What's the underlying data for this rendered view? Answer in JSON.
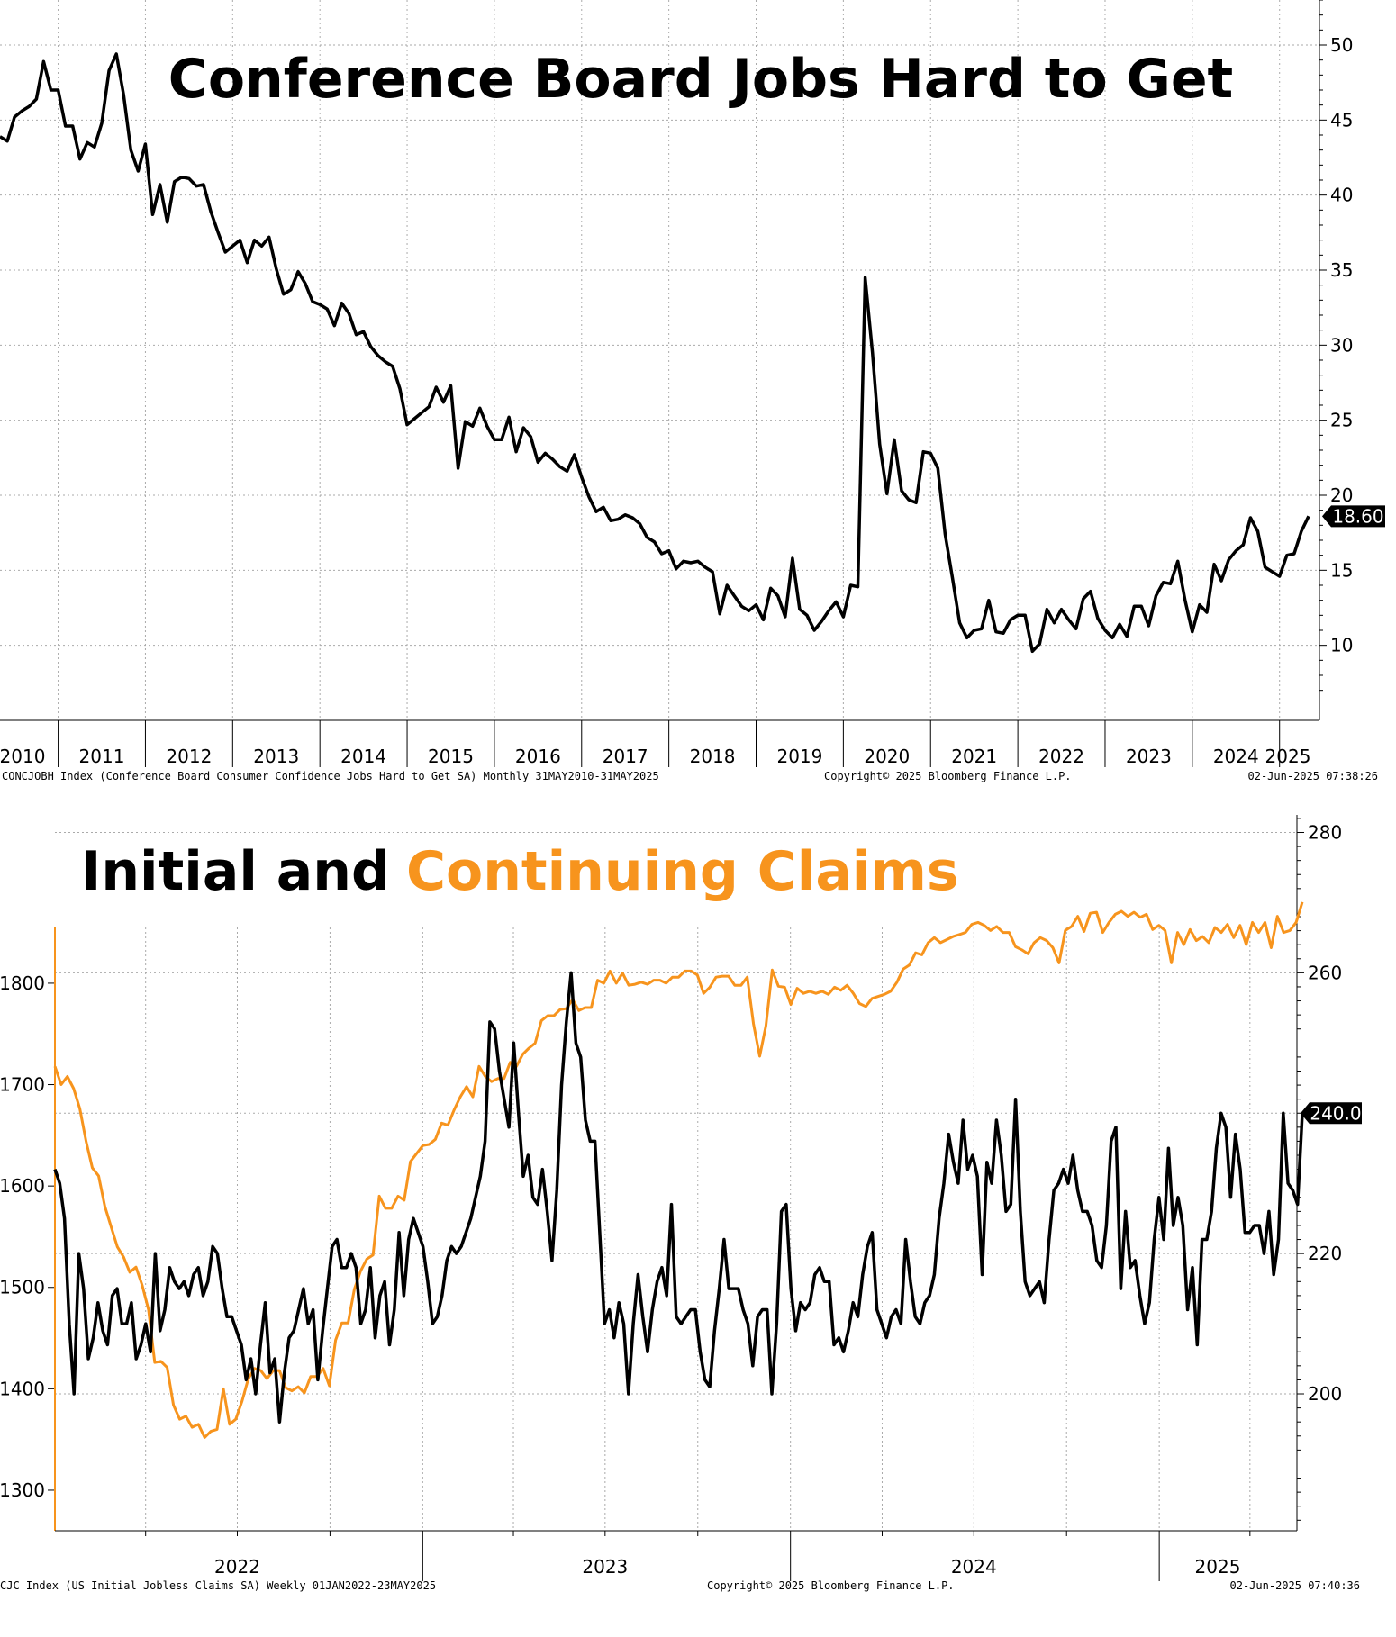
{
  "chart_data": [
    {
      "type": "line",
      "title": "Conference Board Jobs Hard to Get",
      "y_axis_position": "right",
      "ylim": [
        5,
        53
      ],
      "y_ticks": [
        10,
        15,
        20,
        25,
        30,
        35,
        40,
        45,
        50
      ],
      "x_ticks": [
        "2010",
        "2011",
        "2012",
        "2013",
        "2014",
        "2015",
        "2016",
        "2017",
        "2018",
        "2019",
        "2020",
        "2021",
        "2022",
        "2023",
        "2024",
        "2025"
      ],
      "grid": true,
      "last_value_label": "18.60",
      "line_color": "#000000",
      "footer_left": "CONCJOBH Index (Conference Board Consumer Confidence Jobs Hard to Get SA)  Monthly 31MAY2010-31MAY2025",
      "footer_center": "Copyright© 2025 Bloomberg Finance L.P.",
      "footer_right": "02-Jun-2025 07:38:26",
      "series": [
        {
          "start": "2010-05",
          "frequency": "monthly",
          "values": [
            43.9,
            43.6,
            45.2,
            45.6,
            45.9,
            46.4,
            48.9,
            47.0,
            47.0,
            44.6,
            44.6,
            42.4,
            43.5,
            43.2,
            44.8,
            48.3,
            49.4,
            46.7,
            43.0,
            41.6,
            43.4,
            38.7,
            40.7,
            38.2,
            40.9,
            41.2,
            41.1,
            40.6,
            40.7,
            38.9,
            37.5,
            36.2,
            36.6,
            37.0,
            35.5,
            37.0,
            36.6,
            37.2,
            35.1,
            33.4,
            33.7,
            34.9,
            34.1,
            32.9,
            32.7,
            32.4,
            31.3,
            32.8,
            32.1,
            30.7,
            30.9,
            29.9,
            29.3,
            28.9,
            28.6,
            27.1,
            24.7,
            25.1,
            25.5,
            25.9,
            27.2,
            26.2,
            27.3,
            21.8,
            24.9,
            24.6,
            25.8,
            24.6,
            23.7,
            23.7,
            25.2,
            22.9,
            24.5,
            23.9,
            22.2,
            22.8,
            22.4,
            21.9,
            21.6,
            22.7,
            21.2,
            19.9,
            18.9,
            19.2,
            18.3,
            18.4,
            18.7,
            18.5,
            18.1,
            17.2,
            16.9,
            16.1,
            16.3,
            15.1,
            15.6,
            15.5,
            15.6,
            15.2,
            14.9,
            12.1,
            14.0,
            13.3,
            12.6,
            12.3,
            12.7,
            11.7,
            13.8,
            13.3,
            11.9,
            15.8,
            12.4,
            12.0,
            11.0,
            11.6,
            12.3,
            12.9,
            11.9,
            14.0,
            13.9,
            34.5,
            29.5,
            23.4,
            20.1,
            23.7,
            20.3,
            19.7,
            19.5,
            22.9,
            22.8,
            21.8,
            17.4,
            14.5,
            11.5,
            10.5,
            11.0,
            11.1,
            13.0,
            10.9,
            10.8,
            11.7,
            12.0,
            12.0,
            9.6,
            10.1,
            12.4,
            11.5,
            12.4,
            11.7,
            11.1,
            13.1,
            13.6,
            11.8,
            11.0,
            10.5,
            11.4,
            10.6,
            12.6,
            12.6,
            11.3,
            13.3,
            14.2,
            14.1,
            15.6,
            13.0,
            10.9,
            12.7,
            12.2,
            15.4,
            14.3,
            15.7,
            16.3,
            16.7,
            18.5,
            17.6,
            15.2,
            14.9,
            14.6,
            16.0,
            16.1,
            17.6,
            18.6
          ]
        }
      ]
    },
    {
      "type": "line",
      "title_part1": "Initial and",
      "title_part2": "Continuing Claims",
      "x_ticks": [
        "2022",
        "2023",
        "2024",
        "2025"
      ],
      "grid": true,
      "footer_left": "CJC Index (US Initial Jobless Claims SA)  Weekly 01JAN2022-23MAY2025",
      "footer_center": "Copyright© 2025 Bloomberg Finance L.P.",
      "footer_right": "02-Jun-2025 07:40:36",
      "left_axis": {
        "ylim": [
          1260,
          1855
        ],
        "ticks": [
          1300,
          1400,
          1500,
          1600,
          1700,
          1800
        ],
        "color": "#f7941d"
      },
      "right_axis": {
        "ylim": [
          180.5,
          282.5
        ],
        "ticks": [
          200,
          220,
          240,
          260,
          280
        ],
        "color": "#000000"
      },
      "last_value_label": "240.0",
      "series": [
        {
          "name": "Continuing Claims",
          "axis": "left",
          "color": "#f7941d",
          "start": "2022-01-01",
          "frequency": "weekly",
          "values": [
            1718,
            1700,
            1708,
            1696,
            1676,
            1644,
            1618,
            1610,
            1580,
            1560,
            1540,
            1530,
            1515,
            1520,
            1502,
            1478,
            1426,
            1427,
            1421,
            1384,
            1370,
            1373,
            1362,
            1365,
            1352,
            1358,
            1360,
            1400,
            1365,
            1370,
            1388,
            1410,
            1420,
            1418,
            1410,
            1418,
            1418,
            1401,
            1398,
            1402,
            1396,
            1412,
            1412,
            1420,
            1403,
            1448,
            1465,
            1465,
            1498,
            1516,
            1528,
            1532,
            1590,
            1578,
            1578,
            1590,
            1586,
            1624,
            1632,
            1640,
            1641,
            1646,
            1662,
            1660,
            1675,
            1688,
            1698,
            1688,
            1718,
            1708,
            1703,
            1706,
            1706,
            1722,
            1718,
            1730,
            1736,
            1741,
            1763,
            1768,
            1768,
            1774,
            1775,
            1784,
            1773,
            1776,
            1776,
            1803,
            1800,
            1812,
            1800,
            1810,
            1798,
            1799,
            1801,
            1799,
            1803,
            1803,
            1800,
            1806,
            1806,
            1812,
            1812,
            1808,
            1790,
            1796,
            1806,
            1807,
            1807,
            1798,
            1798,
            1806,
            1760,
            1728,
            1758,
            1813,
            1797,
            1796,
            1779,
            1795,
            1790,
            1792,
            1790,
            1792,
            1789,
            1796,
            1793,
            1798,
            1790,
            1780,
            1777,
            1785,
            1787,
            1789,
            1792,
            1801,
            1814,
            1818,
            1830,
            1828,
            1840,
            1845,
            1840,
            1843,
            1846,
            1848,
            1850,
            1858,
            1860,
            1857,
            1852,
            1856,
            1850,
            1850,
            1836,
            1833,
            1829,
            1840,
            1845,
            1842,
            1835,
            1820,
            1852,
            1856,
            1866,
            1851,
            1869,
            1870,
            1850,
            1860,
            1868,
            1871,
            1866,
            1870,
            1865,
            1868,
            1853,
            1857,
            1852,
            1820,
            1850,
            1838,
            1853,
            1842,
            1846,
            1840,
            1855,
            1850,
            1858,
            1845,
            1857,
            1838,
            1860,
            1850,
            1860,
            1835,
            1866,
            1850,
            1852,
            1860,
            1880
          ]
        },
        {
          "name": "Initial Claims",
          "axis": "right",
          "color": "#000000",
          "start": "2022-01-01",
          "frequency": "weekly",
          "values": [
            232,
            230,
            225,
            210,
            200,
            220,
            215,
            205,
            208,
            213,
            209,
            207,
            214,
            215,
            210,
            210,
            213,
            205,
            207,
            210,
            206,
            220,
            209,
            212,
            218,
            216,
            215,
            216,
            214,
            217,
            218,
            214,
            216,
            221,
            220,
            215,
            211,
            211,
            209,
            207,
            202,
            205,
            200,
            207,
            213,
            203,
            205,
            196,
            203,
            208,
            209,
            212,
            215,
            210,
            212,
            202,
            209,
            215,
            221,
            222,
            218,
            218,
            220,
            218,
            210,
            212,
            218,
            208,
            214,
            216,
            207,
            212,
            223,
            214,
            222,
            225,
            223,
            221,
            216,
            210,
            211,
            214,
            219,
            221,
            220,
            221,
            223,
            225,
            228,
            231,
            236,
            253,
            252,
            246,
            242,
            238,
            250,
            240,
            231,
            234,
            228,
            227,
            232,
            226,
            219,
            229,
            244,
            253,
            260,
            250,
            248,
            239,
            236,
            236,
            223,
            210,
            212,
            208,
            213,
            210,
            200,
            210,
            217,
            211,
            206,
            212,
            216,
            218,
            214,
            227,
            211,
            210,
            211,
            212,
            212,
            206,
            202,
            201,
            209,
            215,
            222,
            215,
            215,
            215,
            212,
            210,
            204,
            211,
            212,
            212,
            200,
            210,
            226,
            227,
            215,
            209,
            213,
            212,
            213,
            217,
            218,
            216,
            216,
            207,
            208,
            206,
            209,
            213,
            211,
            217,
            221,
            223,
            212,
            210,
            208,
            211,
            212,
            210,
            222,
            216,
            211,
            210,
            213,
            214,
            217,
            225,
            230,
            237,
            233,
            230,
            239,
            232,
            234,
            231,
            217,
            233,
            230,
            239,
            234,
            226,
            227,
            242,
            226,
            216,
            214,
            215,
            216,
            213,
            222,
            229,
            230,
            232,
            230,
            234,
            229,
            226,
            226,
            224,
            219,
            218,
            224,
            236,
            238,
            215,
            226,
            218,
            219,
            214,
            210,
            213,
            222,
            228,
            222,
            235,
            224,
            228,
            224,
            212,
            218,
            207,
            222,
            222,
            226,
            235,
            240,
            238,
            228,
            237,
            232,
            223,
            223,
            224,
            224,
            220,
            226,
            217,
            222,
            240,
            230,
            229,
            227,
            240
          ]
        }
      ]
    }
  ]
}
